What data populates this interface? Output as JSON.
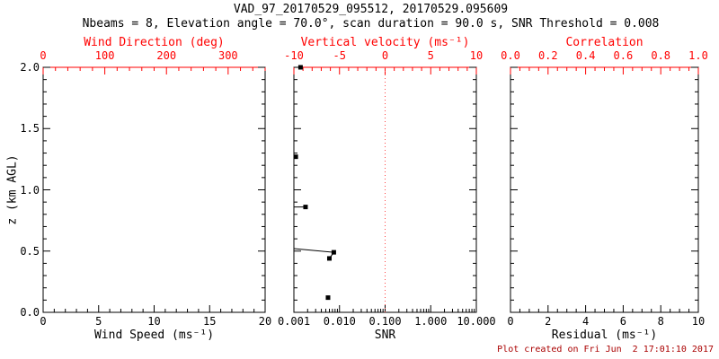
{
  "header": {
    "title": "VAD_97_20170529_095512, 20170529.095609",
    "subtitle": "Nbeams = 8, Elevation angle = 70.0°, scan duration = 90.0 s, SNR Threshold = 0.008"
  },
  "footer": {
    "created_text": "Plot created on Fri Jun  2 17:01:10 2017"
  },
  "colors": {
    "primary_axis": "#000000",
    "secondary_axis": "#ff0000",
    "footer_text": "#aa0000",
    "marker": "#000000",
    "zero_line": "#ff4444",
    "background": "#ffffff"
  },
  "chart_data": [
    {
      "id": "wind",
      "type": "scatter",
      "ylabel": "z (km AGL)",
      "y_axis": {
        "min": 0,
        "max": 2,
        "minor_step": 0.1,
        "major": [
          {
            "v": 0,
            "label": "0.0"
          },
          {
            "v": 0.5,
            "label": "0.5"
          },
          {
            "v": 1,
            "label": "1.0"
          },
          {
            "v": 1.5,
            "label": "1.5"
          },
          {
            "v": 2,
            "label": "2.0"
          }
        ]
      },
      "bottom_axis": {
        "label": "Wind Speed (ms⁻¹)",
        "scale": "linear",
        "min": 0,
        "max": 20,
        "minor_step": 1,
        "major": [
          {
            "v": 0,
            "label": "0"
          },
          {
            "v": 5,
            "label": "5"
          },
          {
            "v": 10,
            "label": "10"
          },
          {
            "v": 15,
            "label": "15"
          },
          {
            "v": 20,
            "label": "20"
          }
        ]
      },
      "top_axis": {
        "label": "Wind Direction (deg)",
        "scale": "linear",
        "min": 0,
        "max": 360,
        "minor_step": 20,
        "major": [
          {
            "v": 0,
            "label": "0"
          },
          {
            "v": 100,
            "label": "100"
          },
          {
            "v": 200,
            "label": "200"
          },
          {
            "v": 300,
            "label": "300"
          }
        ]
      },
      "points": [],
      "segments": []
    },
    {
      "id": "snr",
      "type": "scatter",
      "ylabel": "z (km AGL)",
      "y_axis": {
        "min": 0,
        "max": 2,
        "minor_step": 0.1,
        "major": [
          {
            "v": 0,
            "label": "0.0"
          },
          {
            "v": 0.5,
            "label": "0.5"
          },
          {
            "v": 1,
            "label": "1.0"
          },
          {
            "v": 1.5,
            "label": "1.5"
          },
          {
            "v": 2,
            "label": "2.0"
          }
        ]
      },
      "bottom_axis": {
        "label": "SNR",
        "scale": "log",
        "min": 0.001,
        "max": 10,
        "major": [
          {
            "v": 0.001,
            "label": "0.001"
          },
          {
            "v": 0.01,
            "label": "0.010"
          },
          {
            "v": 0.1,
            "label": "0.100"
          },
          {
            "v": 1,
            "label": "1.000"
          },
          {
            "v": 10,
            "label": "10.000"
          }
        ]
      },
      "top_axis": {
        "label": "Vertical velocity (ms⁻¹)",
        "scale": "linear",
        "min": -10,
        "max": 10,
        "minor_step": 1,
        "major": [
          {
            "v": -10,
            "label": "-10"
          },
          {
            "v": -5,
            "label": "-5"
          },
          {
            "v": 0,
            "label": "0"
          },
          {
            "v": 5,
            "label": "5"
          },
          {
            "v": 10,
            "label": "10"
          }
        ]
      },
      "zero_line": {
        "axis": "top",
        "value": 0
      },
      "points": [
        [
          0.0014,
          2.0
        ],
        [
          0.0011,
          1.27
        ],
        [
          0.0018,
          0.86
        ],
        [
          0.0075,
          0.49
        ],
        [
          0.006,
          0.44
        ],
        [
          0.0056,
          0.12
        ]
      ],
      "segments": [
        [
          [
            0.001,
            0.86
          ],
          [
            0.0018,
            0.86
          ]
        ],
        [
          [
            0.001,
            0.52
          ],
          [
            0.0075,
            0.49
          ],
          [
            0.006,
            0.44
          ]
        ]
      ]
    },
    {
      "id": "residual",
      "type": "scatter",
      "ylabel": "z (km AGL)",
      "y_axis": {
        "min": 0,
        "max": 2,
        "minor_step": 0.1,
        "major": [
          {
            "v": 0,
            "label": "0.0"
          },
          {
            "v": 0.5,
            "label": "0.5"
          },
          {
            "v": 1,
            "label": "1.0"
          },
          {
            "v": 1.5,
            "label": "1.5"
          },
          {
            "v": 2,
            "label": "2.0"
          }
        ]
      },
      "bottom_axis": {
        "label": "Residual (ms⁻¹)",
        "scale": "linear",
        "min": 0,
        "max": 10,
        "minor_step": 0.5,
        "major": [
          {
            "v": 0,
            "label": "0"
          },
          {
            "v": 2,
            "label": "2"
          },
          {
            "v": 4,
            "label": "4"
          },
          {
            "v": 6,
            "label": "6"
          },
          {
            "v": 8,
            "label": "8"
          },
          {
            "v": 10,
            "label": "10"
          }
        ]
      },
      "top_axis": {
        "label": "Correlation",
        "scale": "linear",
        "min": 0,
        "max": 1,
        "minor_step": 0.05,
        "major": [
          {
            "v": 0,
            "label": "0.0"
          },
          {
            "v": 0.2,
            "label": "0.2"
          },
          {
            "v": 0.4,
            "label": "0.4"
          },
          {
            "v": 0.6,
            "label": "0.6"
          },
          {
            "v": 0.8,
            "label": "0.8"
          },
          {
            "v": 1,
            "label": "1.0"
          }
        ]
      },
      "points": [],
      "segments": []
    }
  ]
}
